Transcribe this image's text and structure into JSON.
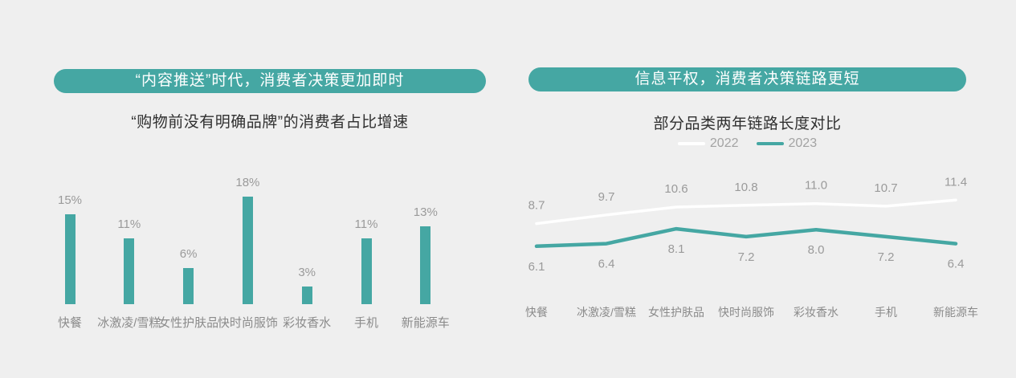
{
  "page": {
    "background": "#efefef",
    "accent": "#45a7a3",
    "text_colors": {
      "banner_text": "#ffffff",
      "subtitle": "#2f2f2f",
      "data_label": "#9a9a9a",
      "category_label": "#8b8b8b",
      "legend_label": "#a3a3a3"
    }
  },
  "left_panel": {
    "banner_title": "“内容推送”时代，消费者决策更加即时",
    "subtitle": "“购物前没有明确品牌”的消费者占比增速"
  },
  "right_panel": {
    "banner_title": "信息平权，消费者决策链路更短",
    "subtitle": "部分品类两年链路长度对比"
  },
  "chart_data": [
    {
      "type": "bar",
      "panel": "left",
      "title": "“购物前没有明确品牌”的消费者占比增速",
      "categories": [
        "快餐",
        "冰激凌/雪糕",
        "女性护肤品",
        "快时尚服饰",
        "彩妆香水",
        "手机",
        "新能源车"
      ],
      "values": [
        15,
        11,
        6,
        18,
        3,
        11,
        13
      ],
      "value_labels": [
        "15%",
        "11%",
        "6%",
        "18%",
        "3%",
        "11%",
        "13%"
      ],
      "bar_color": "#45a7a3",
      "ylabel": "",
      "xlabel": "",
      "ylim": [
        0,
        20
      ],
      "grid": false,
      "axes_hidden": true,
      "data_labels": true
    },
    {
      "type": "line",
      "panel": "right",
      "title": "部分品类两年链路长度对比",
      "categories": [
        "快餐",
        "冰激凌/雪糕",
        "女性护肤品",
        "快时尚服饰",
        "彩妆香水",
        "手机",
        "新能源车"
      ],
      "series": [
        {
          "name": "2022",
          "color": "#ffffff",
          "values": [
            8.7,
            9.7,
            10.6,
            10.8,
            11.0,
            10.7,
            11.4
          ],
          "labels": [
            "8.7",
            "9.7",
            "10.6",
            "10.8",
            "11.0",
            "10.7",
            "11.4"
          ]
        },
        {
          "name": "2023",
          "color": "#45a7a3",
          "values": [
            6.1,
            6.4,
            8.1,
            7.2,
            8.0,
            7.2,
            6.4
          ],
          "labels": [
            "6.1",
            "6.4",
            "8.1",
            "7.2",
            "8.0",
            "7.2",
            "6.4"
          ]
        }
      ],
      "ylabel": "",
      "xlabel": "",
      "ylim": [
        0,
        14
      ],
      "grid": false,
      "axes_hidden": true,
      "legend_position": "top",
      "data_labels": true
    }
  ]
}
